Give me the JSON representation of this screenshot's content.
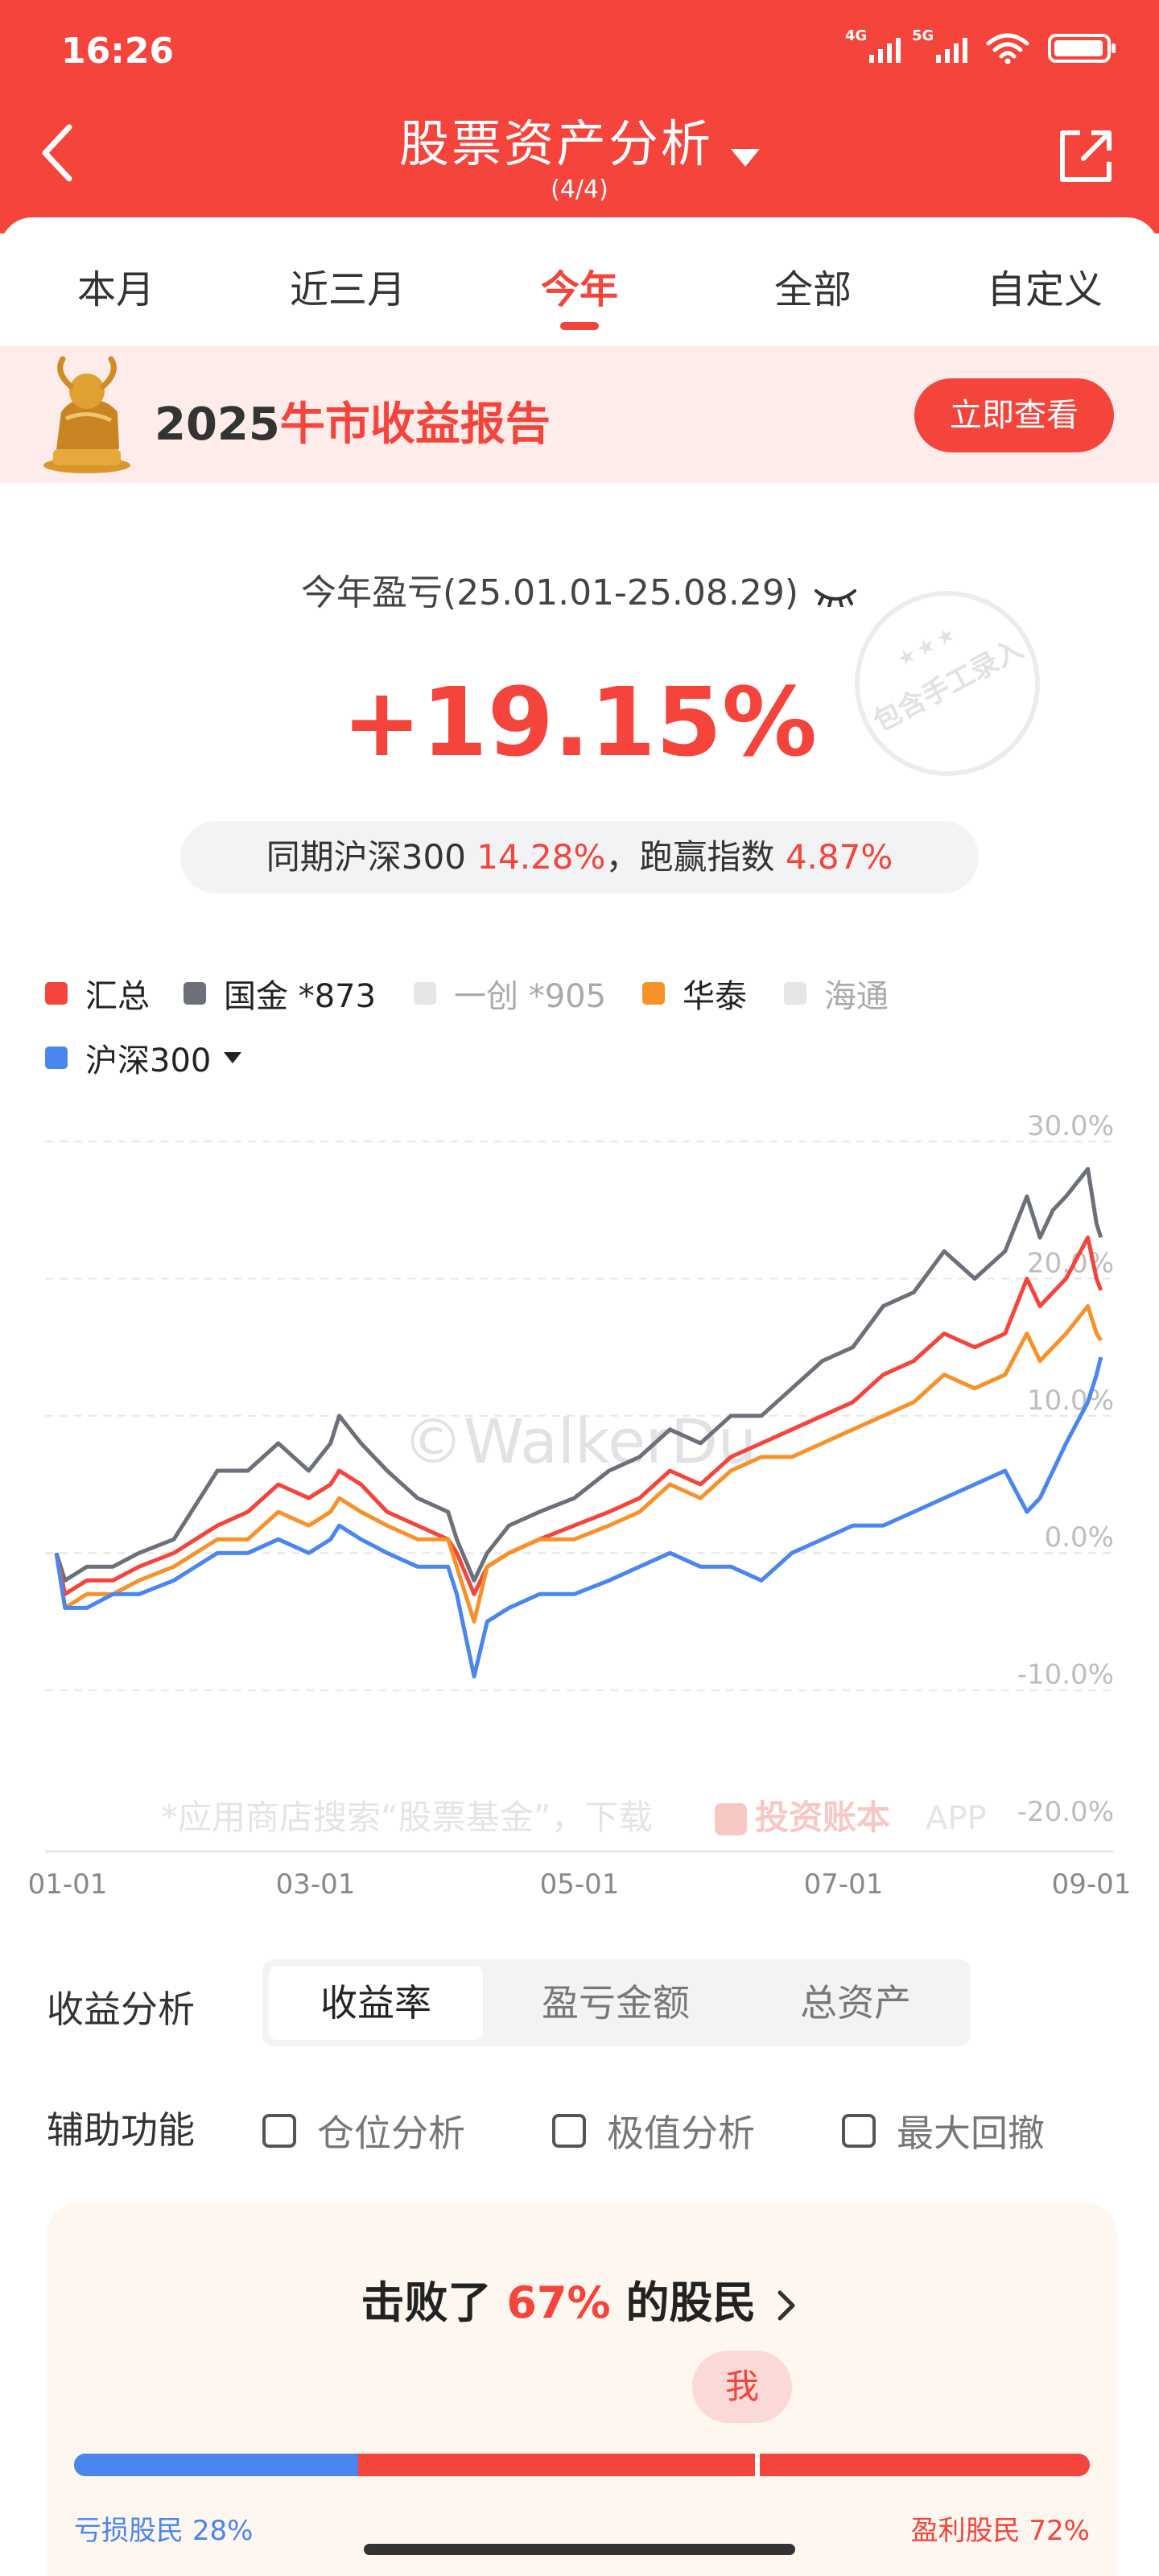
{
  "status_bar": {
    "time": "16:26",
    "signal1": "4G",
    "signal2": "5G"
  },
  "header": {
    "title": "股票资产分析",
    "subtitle": "(4/4)"
  },
  "tabs": [
    {
      "label": "本月",
      "active": false
    },
    {
      "label": "近三月",
      "active": false
    },
    {
      "label": "今年",
      "active": true
    },
    {
      "label": "全部",
      "active": false
    },
    {
      "label": "自定义",
      "active": false
    }
  ],
  "banner": {
    "prefix": "2025",
    "highlight": "牛市收益报告",
    "button": "立即查看"
  },
  "summary": {
    "period_label": "今年盈亏(25.01.01-25.08.29)",
    "value": "+19.15%",
    "compare_prefix": "同期沪深300",
    "compare_index": "14.28%",
    "compare_mid": "，跑赢指数",
    "compare_beat": "4.87%",
    "stamp": {
      "stars": "★★★",
      "text": "包含手工录入"
    }
  },
  "legend": [
    {
      "label": "汇总",
      "color": "#f4443c",
      "enabled": true
    },
    {
      "label": "国金 *873",
      "color": "#6b7079",
      "enabled": true
    },
    {
      "label": "一创 *905",
      "color": "#e6e6e6",
      "enabled": false
    },
    {
      "label": "华泰",
      "color": "#f7922a",
      "enabled": true
    },
    {
      "label": "海通",
      "color": "#e6e6e6",
      "enabled": false
    },
    {
      "label": "沪深300",
      "color": "#4a86ee",
      "enabled": true
    }
  ],
  "chart_data": {
    "type": "line",
    "y_tick_labels": [
      "30.0%",
      "20.0%",
      "10.0%",
      "0.0%",
      "-10.0%",
      "-20.0%"
    ],
    "x_tick_labels": [
      "01-01",
      "03-01",
      "05-01",
      "07-01",
      "09-01"
    ],
    "ylim": [
      -20,
      30
    ],
    "watermark": "©WalkerDu",
    "footer_ad": {
      "text": "*应用商店搜索“股票基金”，下载",
      "app_name": "投资账本",
      "app_suffix": "APP"
    },
    "series": [
      {
        "name": "国金 *873",
        "color": "#6b7079",
        "x": [
          "01-01",
          "01-03",
          "01-08",
          "01-14",
          "01-20",
          "01-28",
          "02-07",
          "02-14",
          "02-21",
          "02-28",
          "03-05",
          "03-07",
          "03-12",
          "03-18",
          "03-25",
          "04-01",
          "04-03",
          "04-07",
          "04-10",
          "04-15",
          "04-22",
          "04-30",
          "05-08",
          "05-15",
          "05-22",
          "05-29",
          "06-05",
          "06-12",
          "06-19",
          "06-26",
          "07-03",
          "07-10",
          "07-17",
          "07-24",
          "07-31",
          "08-07",
          "08-12",
          "08-15",
          "08-18",
          "08-21",
          "08-26",
          "08-28",
          "08-29"
        ],
        "y": [
          0,
          -2,
          -1,
          -1,
          0,
          1,
          6,
          6,
          8,
          6,
          8,
          10,
          8,
          6,
          4,
          3,
          1,
          -2,
          0,
          2,
          3,
          4,
          6,
          7,
          9,
          8,
          10,
          10,
          12,
          14,
          15,
          18,
          19,
          22,
          20,
          22,
          26,
          23,
          25,
          26,
          28,
          24,
          23
        ]
      },
      {
        "name": "汇总",
        "color": "#f4443c",
        "x": [
          "01-01",
          "01-03",
          "01-08",
          "01-14",
          "01-20",
          "01-28",
          "02-07",
          "02-14",
          "02-21",
          "02-28",
          "03-05",
          "03-07",
          "03-12",
          "03-18",
          "03-25",
          "04-01",
          "04-03",
          "04-07",
          "04-10",
          "04-15",
          "04-22",
          "04-30",
          "05-08",
          "05-15",
          "05-22",
          "05-29",
          "06-05",
          "06-12",
          "06-19",
          "06-26",
          "07-03",
          "07-10",
          "07-17",
          "07-24",
          "07-31",
          "08-07",
          "08-12",
          "08-15",
          "08-18",
          "08-21",
          "08-26",
          "08-28",
          "08-29"
        ],
        "y": [
          0,
          -3,
          -2,
          -2,
          -1,
          0,
          2,
          3,
          5,
          4,
          5,
          6,
          5,
          3,
          2,
          1,
          0,
          -3,
          -1,
          0,
          1,
          2,
          3,
          4,
          6,
          5,
          7,
          8,
          9,
          10,
          11,
          13,
          14,
          16,
          15,
          16,
          20,
          18,
          19,
          20,
          23,
          20,
          19.15
        ]
      },
      {
        "name": "华泰",
        "color": "#f7922a",
        "x": [
          "01-01",
          "01-03",
          "01-08",
          "01-14",
          "01-20",
          "01-28",
          "02-07",
          "02-14",
          "02-21",
          "02-28",
          "03-05",
          "03-07",
          "03-12",
          "03-18",
          "03-25",
          "04-01",
          "04-03",
          "04-07",
          "04-10",
          "04-15",
          "04-22",
          "04-30",
          "05-08",
          "05-15",
          "05-22",
          "05-29",
          "06-05",
          "06-12",
          "06-19",
          "06-26",
          "07-03",
          "07-10",
          "07-17",
          "07-24",
          "07-31",
          "08-07",
          "08-12",
          "08-15",
          "08-18",
          "08-21",
          "08-26",
          "08-28",
          "08-29"
        ],
        "y": [
          0,
          -4,
          -3,
          -3,
          -2,
          -1,
          1,
          1,
          3,
          2,
          3,
          4,
          3,
          2,
          1,
          1,
          -1,
          -5,
          -1,
          0,
          1,
          1,
          2,
          3,
          5,
          4,
          6,
          7,
          7,
          8,
          9,
          10,
          11,
          13,
          12,
          13,
          16,
          14,
          15,
          16,
          18,
          16,
          15.5
        ]
      },
      {
        "name": "沪深300",
        "color": "#4a86ee",
        "x": [
          "01-01",
          "01-03",
          "01-08",
          "01-14",
          "01-20",
          "01-28",
          "02-07",
          "02-14",
          "02-21",
          "02-28",
          "03-05",
          "03-07",
          "03-12",
          "03-18",
          "03-25",
          "04-01",
          "04-03",
          "04-07",
          "04-10",
          "04-15",
          "04-22",
          "04-30",
          "05-08",
          "05-15",
          "05-22",
          "05-29",
          "06-05",
          "06-12",
          "06-19",
          "06-26",
          "07-03",
          "07-10",
          "07-17",
          "07-24",
          "07-31",
          "08-07",
          "08-12",
          "08-15",
          "08-18",
          "08-21",
          "08-26",
          "08-28",
          "08-29"
        ],
        "y": [
          0,
          -4,
          -4,
          -3,
          -3,
          -2,
          0,
          0,
          1,
          0,
          1,
          2,
          1,
          0,
          -1,
          -1,
          -3,
          -9,
          -5,
          -4,
          -3,
          -3,
          -2,
          -1,
          0,
          -1,
          -1,
          -2,
          0,
          1,
          2,
          2,
          3,
          4,
          5,
          6,
          3,
          4,
          6,
          8,
          11,
          13,
          14.28
        ]
      }
    ]
  },
  "analysis": {
    "label": "收益分析",
    "options": [
      {
        "label": "收益率",
        "active": true
      },
      {
        "label": "盈亏金额",
        "active": false
      },
      {
        "label": "总资产",
        "active": false
      }
    ]
  },
  "aux": {
    "label": "辅助功能",
    "checks": [
      {
        "label": "仓位分析",
        "checked": false
      },
      {
        "label": "极值分析",
        "checked": false
      },
      {
        "label": "最大回撤",
        "checked": false
      }
    ]
  },
  "beat_card": {
    "prefix": "击败了",
    "percent": "67%",
    "suffix": "的股民",
    "me_label": "我",
    "loss_label": "亏损股民",
    "loss_pct": "28%",
    "loss_fraction": 0.28,
    "me_fraction": 0.67,
    "win_label": "盈利股民",
    "win_pct": "72%"
  },
  "colors": {
    "brand": "#f4443c",
    "index_blue": "#4a86ee",
    "gray_line": "#6b7079",
    "orange": "#f7922a"
  }
}
